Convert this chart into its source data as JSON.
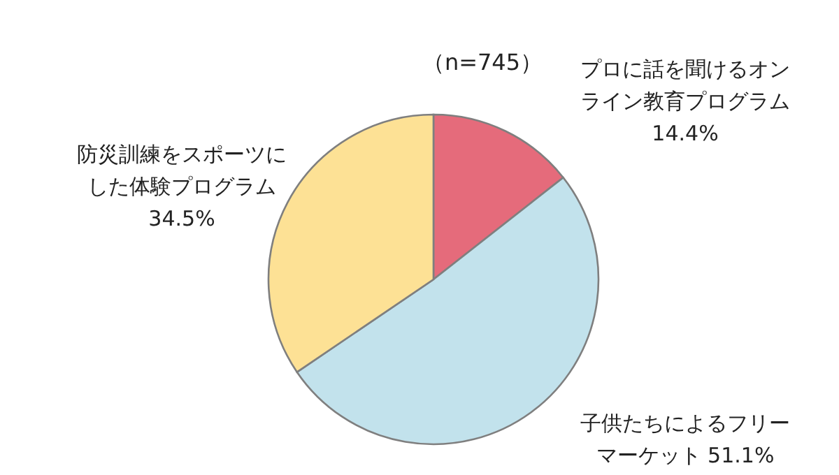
{
  "chart_data": {
    "type": "pie",
    "title": "（n=745）",
    "categories": [
      "プロに話を聞けるオンライン教育プログラム",
      "子供たちによるフリーマーケット",
      "防災訓練をスポーツにした体験プログラム"
    ],
    "values": [
      14.4,
      51.1,
      34.5
    ],
    "value_labels": [
      "14.4%",
      "51.1%",
      "34.5%"
    ],
    "colors": [
      "#e56b7b",
      "#c2e2ec",
      "#fde195"
    ]
  }
}
